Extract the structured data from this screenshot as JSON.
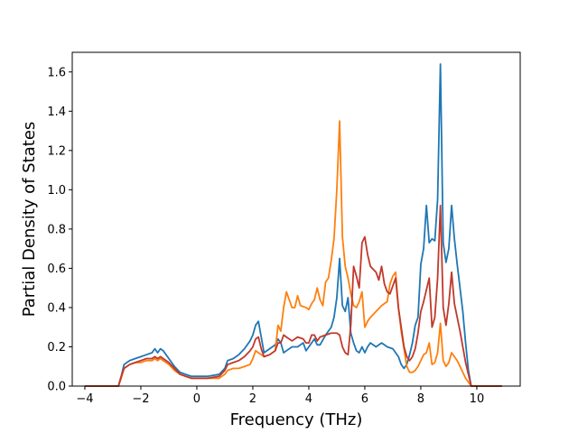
{
  "chart_data": {
    "type": "line",
    "xlabel": "Frequency (THz)",
    "ylabel": "Partial Density of States",
    "xlim": [
      -4.45,
      11.55
    ],
    "ylim": [
      0.0,
      1.7
    ],
    "x_ticks": [
      -4,
      -2,
      0,
      2,
      4,
      6,
      8,
      10
    ],
    "y_ticks": [
      0.0,
      0.2,
      0.4,
      0.6,
      0.8,
      1.0,
      1.2,
      1.4,
      1.6
    ],
    "x_tick_labels": [
      "−4",
      "−2",
      "0",
      "2",
      "4",
      "6",
      "8",
      "10"
    ],
    "y_tick_labels": [
      "0.0",
      "0.2",
      "0.4",
      "0.6",
      "0.8",
      "1.0",
      "1.2",
      "1.4",
      "1.6"
    ],
    "grid": false,
    "series": [
      {
        "color": "#1f77b4",
        "points": [
          [
            -4.0,
            0
          ],
          [
            -2.8,
            0
          ],
          [
            -2.7,
            0.05
          ],
          [
            -2.6,
            0.11
          ],
          [
            -2.4,
            0.13
          ],
          [
            -2.2,
            0.14
          ],
          [
            -2.0,
            0.15
          ],
          [
            -1.8,
            0.16
          ],
          [
            -1.6,
            0.17
          ],
          [
            -1.5,
            0.19
          ],
          [
            -1.4,
            0.17
          ],
          [
            -1.3,
            0.19
          ],
          [
            -1.2,
            0.18
          ],
          [
            -1.0,
            0.14
          ],
          [
            -0.8,
            0.1
          ],
          [
            -0.6,
            0.07
          ],
          [
            -0.4,
            0.06
          ],
          [
            -0.2,
            0.05
          ],
          [
            0.0,
            0.05
          ],
          [
            0.4,
            0.05
          ],
          [
            0.8,
            0.06
          ],
          [
            1.0,
            0.09
          ],
          [
            1.1,
            0.13
          ],
          [
            1.3,
            0.14
          ],
          [
            1.5,
            0.16
          ],
          [
            1.7,
            0.19
          ],
          [
            1.9,
            0.23
          ],
          [
            2.0,
            0.26
          ],
          [
            2.1,
            0.31
          ],
          [
            2.2,
            0.33
          ],
          [
            2.3,
            0.25
          ],
          [
            2.4,
            0.17
          ],
          [
            2.6,
            0.19
          ],
          [
            2.8,
            0.21
          ],
          [
            2.9,
            0.24
          ],
          [
            3.0,
            0.22
          ],
          [
            3.1,
            0.17
          ],
          [
            3.2,
            0.18
          ],
          [
            3.4,
            0.2
          ],
          [
            3.6,
            0.2
          ],
          [
            3.8,
            0.22
          ],
          [
            3.9,
            0.18
          ],
          [
            4.0,
            0.2
          ],
          [
            4.2,
            0.24
          ],
          [
            4.3,
            0.21
          ],
          [
            4.4,
            0.21
          ],
          [
            4.6,
            0.26
          ],
          [
            4.8,
            0.3
          ],
          [
            4.9,
            0.35
          ],
          [
            5.0,
            0.45
          ],
          [
            5.1,
            0.65
          ],
          [
            5.2,
            0.41
          ],
          [
            5.3,
            0.38
          ],
          [
            5.4,
            0.45
          ],
          [
            5.5,
            0.27
          ],
          [
            5.6,
            0.22
          ],
          [
            5.7,
            0.18
          ],
          [
            5.8,
            0.17
          ],
          [
            5.9,
            0.2
          ],
          [
            6.0,
            0.17
          ],
          [
            6.1,
            0.2
          ],
          [
            6.2,
            0.22
          ],
          [
            6.4,
            0.2
          ],
          [
            6.6,
            0.22
          ],
          [
            6.8,
            0.2
          ],
          [
            7.0,
            0.19
          ],
          [
            7.1,
            0.17
          ],
          [
            7.2,
            0.15
          ],
          [
            7.3,
            0.11
          ],
          [
            7.4,
            0.09
          ],
          [
            7.5,
            0.11
          ],
          [
            7.6,
            0.16
          ],
          [
            7.7,
            0.22
          ],
          [
            7.8,
            0.31
          ],
          [
            7.9,
            0.35
          ],
          [
            8.0,
            0.62
          ],
          [
            8.1,
            0.7
          ],
          [
            8.2,
            0.92
          ],
          [
            8.3,
            0.73
          ],
          [
            8.4,
            0.75
          ],
          [
            8.5,
            0.74
          ],
          [
            8.6,
            0.95
          ],
          [
            8.7,
            1.64
          ],
          [
            8.8,
            0.73
          ],
          [
            8.9,
            0.63
          ],
          [
            9.0,
            0.7
          ],
          [
            9.1,
            0.92
          ],
          [
            9.2,
            0.75
          ],
          [
            9.3,
            0.62
          ],
          [
            9.4,
            0.5
          ],
          [
            9.5,
            0.38
          ],
          [
            9.6,
            0.22
          ],
          [
            9.7,
            0.08
          ],
          [
            9.8,
            0
          ],
          [
            10.9,
            0
          ]
        ]
      },
      {
        "color": "#ff7f0e",
        "points": [
          [
            -4.0,
            0
          ],
          [
            -2.8,
            0
          ],
          [
            -2.7,
            0.04
          ],
          [
            -2.6,
            0.09
          ],
          [
            -2.4,
            0.11
          ],
          [
            -2.2,
            0.12
          ],
          [
            -2.0,
            0.12
          ],
          [
            -1.8,
            0.13
          ],
          [
            -1.6,
            0.13
          ],
          [
            -1.5,
            0.14
          ],
          [
            -1.4,
            0.13
          ],
          [
            -1.3,
            0.14
          ],
          [
            -1.2,
            0.13
          ],
          [
            -1.0,
            0.11
          ],
          [
            -0.8,
            0.08
          ],
          [
            -0.6,
            0.06
          ],
          [
            -0.4,
            0.05
          ],
          [
            -0.2,
            0.04
          ],
          [
            0.0,
            0.04
          ],
          [
            0.4,
            0.04
          ],
          [
            0.8,
            0.04
          ],
          [
            1.0,
            0.06
          ],
          [
            1.1,
            0.08
          ],
          [
            1.3,
            0.09
          ],
          [
            1.5,
            0.09
          ],
          [
            1.7,
            0.1
          ],
          [
            1.9,
            0.11
          ],
          [
            2.0,
            0.14
          ],
          [
            2.1,
            0.18
          ],
          [
            2.2,
            0.17
          ],
          [
            2.3,
            0.16
          ],
          [
            2.4,
            0.15
          ],
          [
            2.6,
            0.16
          ],
          [
            2.8,
            0.18
          ],
          [
            2.9,
            0.31
          ],
          [
            3.0,
            0.28
          ],
          [
            3.1,
            0.4
          ],
          [
            3.2,
            0.48
          ],
          [
            3.3,
            0.44
          ],
          [
            3.4,
            0.4
          ],
          [
            3.5,
            0.4
          ],
          [
            3.6,
            0.46
          ],
          [
            3.7,
            0.41
          ],
          [
            3.9,
            0.4
          ],
          [
            4.0,
            0.39
          ],
          [
            4.1,
            0.42
          ],
          [
            4.2,
            0.44
          ],
          [
            4.3,
            0.5
          ],
          [
            4.4,
            0.44
          ],
          [
            4.5,
            0.41
          ],
          [
            4.6,
            0.53
          ],
          [
            4.7,
            0.55
          ],
          [
            4.8,
            0.64
          ],
          [
            4.9,
            0.75
          ],
          [
            5.0,
            1.0
          ],
          [
            5.1,
            1.35
          ],
          [
            5.2,
            0.76
          ],
          [
            5.3,
            0.61
          ],
          [
            5.4,
            0.55
          ],
          [
            5.5,
            0.47
          ],
          [
            5.6,
            0.41
          ],
          [
            5.7,
            0.4
          ],
          [
            5.8,
            0.43
          ],
          [
            5.9,
            0.48
          ],
          [
            6.0,
            0.3
          ],
          [
            6.1,
            0.33
          ],
          [
            6.2,
            0.35
          ],
          [
            6.4,
            0.38
          ],
          [
            6.6,
            0.41
          ],
          [
            6.8,
            0.43
          ],
          [
            6.9,
            0.52
          ],
          [
            7.0,
            0.56
          ],
          [
            7.1,
            0.58
          ],
          [
            7.2,
            0.4
          ],
          [
            7.3,
            0.28
          ],
          [
            7.4,
            0.19
          ],
          [
            7.5,
            0.1
          ],
          [
            7.6,
            0.07
          ],
          [
            7.7,
            0.07
          ],
          [
            7.8,
            0.08
          ],
          [
            7.9,
            0.1
          ],
          [
            8.0,
            0.13
          ],
          [
            8.1,
            0.16
          ],
          [
            8.2,
            0.17
          ],
          [
            8.3,
            0.22
          ],
          [
            8.4,
            0.11
          ],
          [
            8.5,
            0.12
          ],
          [
            8.6,
            0.17
          ],
          [
            8.7,
            0.32
          ],
          [
            8.8,
            0.13
          ],
          [
            8.9,
            0.1
          ],
          [
            9.0,
            0.12
          ],
          [
            9.1,
            0.17
          ],
          [
            9.2,
            0.15
          ],
          [
            9.3,
            0.13
          ],
          [
            9.4,
            0.1
          ],
          [
            9.5,
            0.07
          ],
          [
            9.6,
            0.04
          ],
          [
            9.7,
            0.02
          ],
          [
            9.8,
            0
          ],
          [
            10.9,
            0
          ]
        ]
      },
      {
        "color": "#c0392b",
        "points": [
          [
            -4.0,
            0
          ],
          [
            -2.8,
            0
          ],
          [
            -2.7,
            0.05
          ],
          [
            -2.6,
            0.09
          ],
          [
            -2.4,
            0.11
          ],
          [
            -2.2,
            0.12
          ],
          [
            -2.0,
            0.13
          ],
          [
            -1.8,
            0.14
          ],
          [
            -1.6,
            0.14
          ],
          [
            -1.5,
            0.15
          ],
          [
            -1.4,
            0.14
          ],
          [
            -1.3,
            0.15
          ],
          [
            -1.2,
            0.14
          ],
          [
            -1.0,
            0.12
          ],
          [
            -0.8,
            0.09
          ],
          [
            -0.6,
            0.06
          ],
          [
            -0.4,
            0.05
          ],
          [
            -0.2,
            0.04
          ],
          [
            0.0,
            0.04
          ],
          [
            0.4,
            0.04
          ],
          [
            0.8,
            0.05
          ],
          [
            1.0,
            0.08
          ],
          [
            1.1,
            0.11
          ],
          [
            1.3,
            0.12
          ],
          [
            1.5,
            0.13
          ],
          [
            1.7,
            0.15
          ],
          [
            1.9,
            0.18
          ],
          [
            2.0,
            0.2
          ],
          [
            2.1,
            0.24
          ],
          [
            2.2,
            0.25
          ],
          [
            2.3,
            0.19
          ],
          [
            2.4,
            0.15
          ],
          [
            2.6,
            0.16
          ],
          [
            2.8,
            0.18
          ],
          [
            2.9,
            0.22
          ],
          [
            3.0,
            0.22
          ],
          [
            3.1,
            0.26
          ],
          [
            3.2,
            0.25
          ],
          [
            3.4,
            0.23
          ],
          [
            3.6,
            0.25
          ],
          [
            3.8,
            0.24
          ],
          [
            3.9,
            0.22
          ],
          [
            4.0,
            0.22
          ],
          [
            4.1,
            0.26
          ],
          [
            4.2,
            0.26
          ],
          [
            4.3,
            0.23
          ],
          [
            4.4,
            0.25
          ],
          [
            4.6,
            0.26
          ],
          [
            4.8,
            0.27
          ],
          [
            5.0,
            0.27
          ],
          [
            5.1,
            0.26
          ],
          [
            5.2,
            0.2
          ],
          [
            5.3,
            0.17
          ],
          [
            5.4,
            0.16
          ],
          [
            5.5,
            0.31
          ],
          [
            5.6,
            0.61
          ],
          [
            5.7,
            0.56
          ],
          [
            5.8,
            0.5
          ],
          [
            5.9,
            0.73
          ],
          [
            6.0,
            0.76
          ],
          [
            6.1,
            0.67
          ],
          [
            6.2,
            0.61
          ],
          [
            6.4,
            0.58
          ],
          [
            6.5,
            0.54
          ],
          [
            6.6,
            0.61
          ],
          [
            6.7,
            0.52
          ],
          [
            6.8,
            0.48
          ],
          [
            6.9,
            0.47
          ],
          [
            7.0,
            0.51
          ],
          [
            7.1,
            0.55
          ],
          [
            7.2,
            0.4
          ],
          [
            7.3,
            0.3
          ],
          [
            7.4,
            0.2
          ],
          [
            7.5,
            0.15
          ],
          [
            7.6,
            0.13
          ],
          [
            7.7,
            0.15
          ],
          [
            7.8,
            0.19
          ],
          [
            7.9,
            0.27
          ],
          [
            8.0,
            0.38
          ],
          [
            8.1,
            0.43
          ],
          [
            8.2,
            0.49
          ],
          [
            8.3,
            0.55
          ],
          [
            8.4,
            0.3
          ],
          [
            8.5,
            0.35
          ],
          [
            8.6,
            0.55
          ],
          [
            8.7,
            0.92
          ],
          [
            8.8,
            0.4
          ],
          [
            8.9,
            0.31
          ],
          [
            9.0,
            0.42
          ],
          [
            9.1,
            0.58
          ],
          [
            9.2,
            0.42
          ],
          [
            9.3,
            0.35
          ],
          [
            9.4,
            0.28
          ],
          [
            9.5,
            0.2
          ],
          [
            9.6,
            0.12
          ],
          [
            9.7,
            0.06
          ],
          [
            9.8,
            0
          ],
          [
            10.9,
            0
          ]
        ]
      }
    ]
  }
}
